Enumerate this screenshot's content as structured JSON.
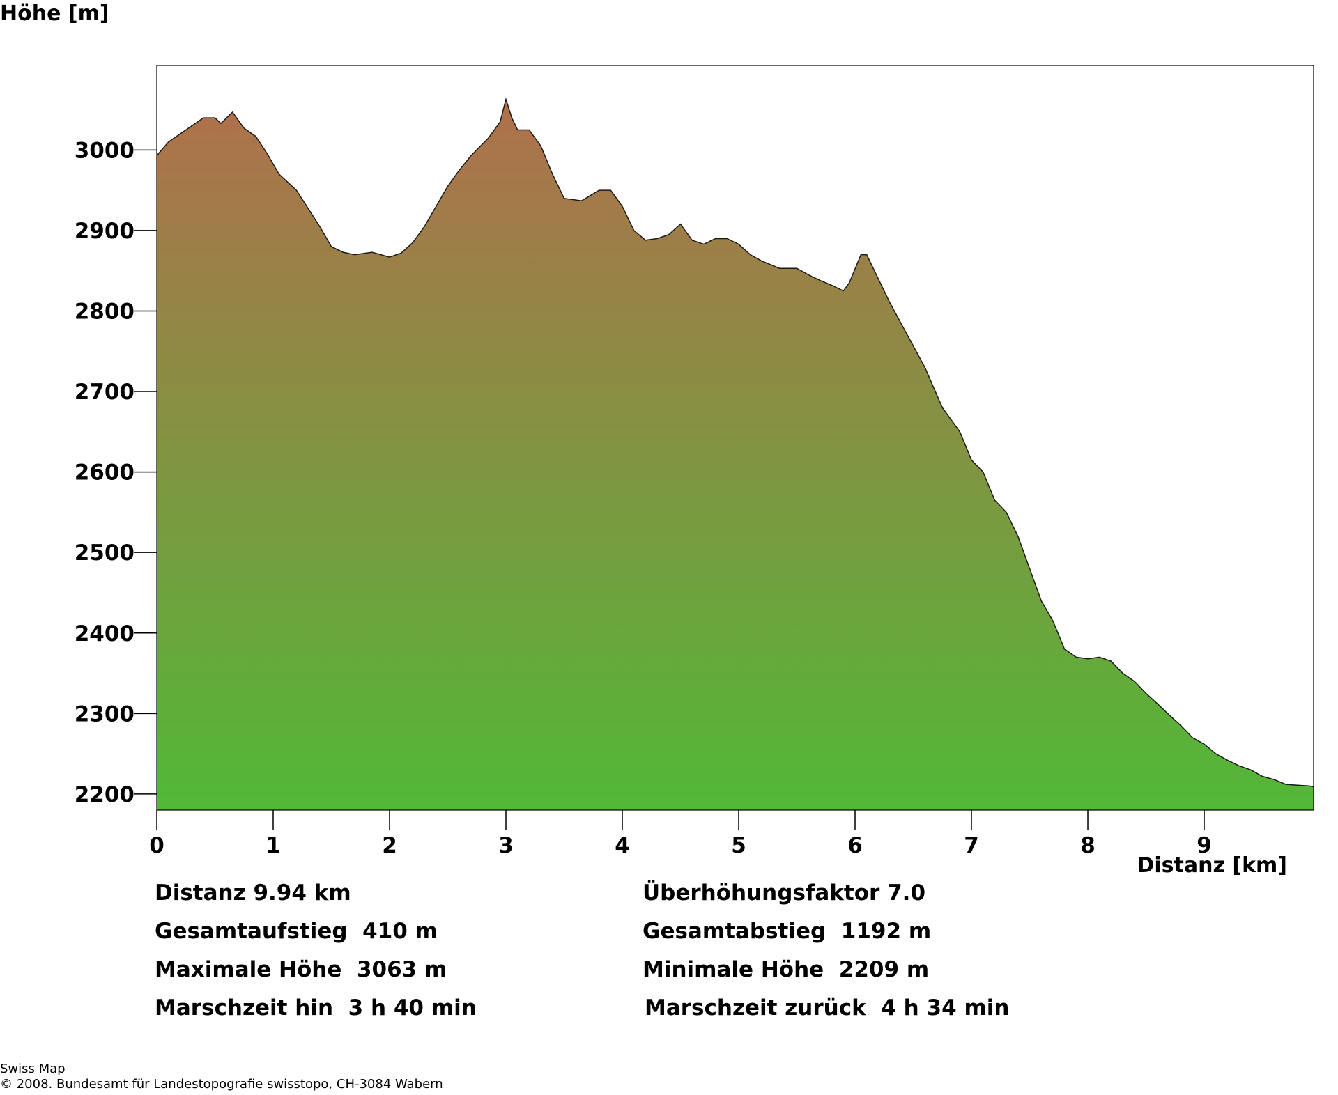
{
  "chart_data": {
    "type": "area",
    "ylabel": "Höhe [m]",
    "xlabel": "Distanz [km]",
    "xlim": [
      0,
      9.94
    ],
    "ylim": [
      2180,
      3105
    ],
    "xticks": [
      0,
      1,
      2,
      3,
      4,
      5,
      6,
      7,
      8,
      9
    ],
    "yticks": [
      2200,
      2300,
      2400,
      2500,
      2600,
      2700,
      2800,
      2900,
      3000
    ],
    "grid": false,
    "gradient": {
      "top": "#B0704C",
      "bottom": "#52B837"
    },
    "series": [
      {
        "x": [
          0,
          0.1,
          0.2,
          0.3,
          0.4,
          0.5,
          0.55,
          0.65,
          0.75,
          0.85,
          0.95,
          1.05,
          1.2,
          1.4,
          1.5,
          1.6,
          1.7,
          1.85,
          2.0,
          2.1,
          2.2,
          2.3,
          2.4,
          2.5,
          2.6,
          2.7,
          2.85,
          2.95,
          3.0,
          3.05,
          3.1,
          3.2,
          3.3,
          3.4,
          3.5,
          3.65,
          3.8,
          3.9,
          4.0,
          4.1,
          4.2,
          4.3,
          4.4,
          4.5,
          4.6,
          4.7,
          4.8,
          4.9,
          5.0,
          5.1,
          5.2,
          5.35,
          5.5,
          5.6,
          5.7,
          5.8,
          5.9,
          5.95,
          6.05,
          6.1,
          6.2,
          6.3,
          6.45,
          6.6,
          6.75,
          6.9,
          7.0,
          7.1,
          7.2,
          7.3,
          7.4,
          7.5,
          7.6,
          7.7,
          7.8,
          7.9,
          8.0,
          8.1,
          8.2,
          8.3,
          8.4,
          8.5,
          8.6,
          8.7,
          8.8,
          8.9,
          9.0,
          9.1,
          9.2,
          9.3,
          9.4,
          9.5,
          9.6,
          9.7,
          9.8,
          9.9,
          9.94
        ],
        "values": [
          2993,
          3010,
          3020,
          3030,
          3040,
          3040,
          3033,
          3047,
          3027,
          3017,
          2995,
          2970,
          2950,
          2905,
          2880,
          2873,
          2870,
          2873,
          2867,
          2872,
          2885,
          2905,
          2930,
          2955,
          2975,
          2993,
          3015,
          3035,
          3063,
          3040,
          3025,
          3025,
          3005,
          2970,
          2940,
          2937,
          2950,
          2950,
          2930,
          2900,
          2888,
          2890,
          2895,
          2908,
          2888,
          2883,
          2890,
          2890,
          2883,
          2870,
          2862,
          2853,
          2853,
          2845,
          2838,
          2832,
          2825,
          2835,
          2870,
          2870,
          2840,
          2810,
          2770,
          2730,
          2680,
          2650,
          2615,
          2600,
          2565,
          2550,
          2520,
          2480,
          2440,
          2415,
          2380,
          2370,
          2368,
          2370,
          2365,
          2350,
          2340,
          2325,
          2312,
          2298,
          2285,
          2270,
          2262,
          2250,
          2242,
          2235,
          2230,
          2222,
          2218,
          2212,
          2211,
          2210,
          2209
        ]
      }
    ]
  },
  "stats": {
    "left": [
      "Distanz 9.94 km",
      "Gesamtaufstieg  410 m",
      "Maximale Höhe  3063 m",
      "Marschzeit hin  3 h 40 min"
    ],
    "right": [
      "Überhöhungsfaktor 7.0",
      "Gesamtabstieg  1192 m",
      "Minimale Höhe  2209 m",
      "Marschzeit zurück  4 h 34 min"
    ]
  },
  "footer": {
    "source": "Swiss Map",
    "copyright": "© 2008. Bundesamt für Landestopografie swisstopo, CH-3084 Wabern"
  }
}
